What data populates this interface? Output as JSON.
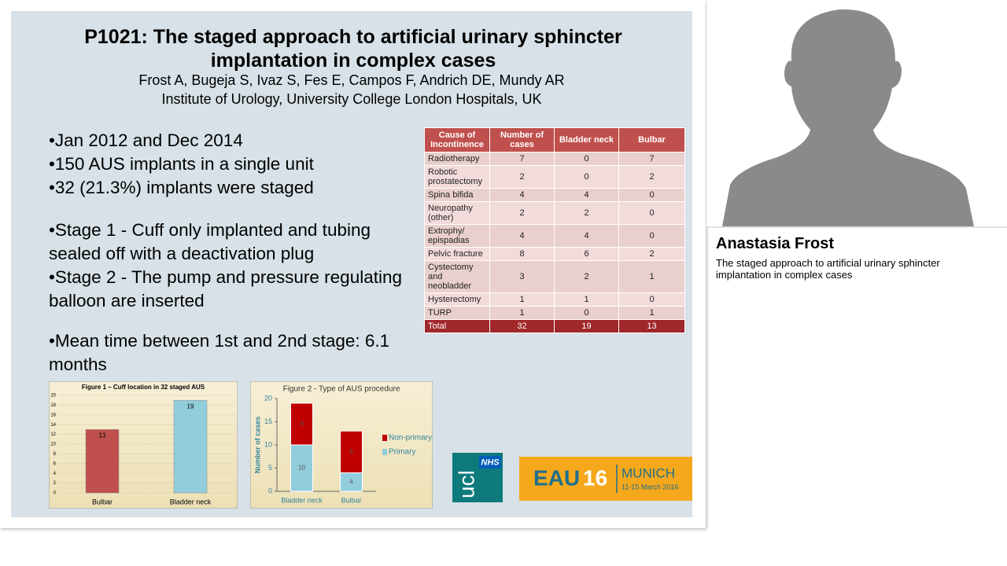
{
  "slide": {
    "title": "P1021: The staged approach to artificial urinary sphincter implantation in complex cases",
    "authors": "Frost A, Bugeja S, Ivaz S, Fes E, Campos F, Andrich DE, Mundy AR",
    "affiliation": "Institute of Urology, University College London Hospitals, UK",
    "bullet_groups": [
      [
        "Jan 2012 and Dec 2014",
        "150 AUS implants in a single unit",
        "32 (21.3%) implants were staged"
      ],
      [
        "Stage 1 - Cuff only implanted and tubing sealed off with a deactivation plug",
        "Stage 2 - The pump and pressure regulating balloon are inserted"
      ],
      [
        "Mean time between 1st and 2nd stage: 6.1 months"
      ]
    ],
    "table": {
      "header": [
        "Cause of Incontinence",
        "Number of cases",
        "Bladder neck",
        "Bulbar"
      ],
      "rows": [
        [
          "Radiotherapy",
          "7",
          "0",
          "7"
        ],
        [
          "Robotic prostatectomy",
          "2",
          "0",
          "2"
        ],
        [
          "Spina bifida",
          "4",
          "4",
          "0"
        ],
        [
          "Neuropathy (other)",
          "2",
          "2",
          "0"
        ],
        [
          "Extrophy/ epispadias",
          "4",
          "4",
          "0"
        ],
        [
          "Pelvic fracture",
          "8",
          "6",
          "2"
        ],
        [
          "Cystectomy and neobladder",
          "3",
          "2",
          "1"
        ],
        [
          "Hysterectomy",
          "1",
          "1",
          "0"
        ],
        [
          "TURP",
          "1",
          "0",
          "1"
        ],
        [
          "Total",
          "32",
          "19",
          "13"
        ]
      ]
    },
    "figure1": {
      "type": "bar",
      "title": "Figure 1 – Cuff location in 32 staged AUS",
      "categories": [
        "Bulbar",
        "Bladder neck"
      ],
      "values": [
        13,
        19
      ],
      "colors": [
        "#c0504d",
        "#92cddc"
      ],
      "ylim": [
        0,
        20
      ],
      "yticks": [
        0,
        2,
        4,
        6,
        8,
        10,
        12,
        14,
        16,
        18,
        20
      ]
    },
    "figure2": {
      "type": "stacked-bar",
      "title": "Figure 2 - Type of AUS procedure",
      "y_label": "Number of cases",
      "categories": [
        "Bladder neck",
        "Bulbar"
      ],
      "series": [
        {
          "name": "Primary",
          "color": "#92cddc",
          "values": [
            10,
            4
          ]
        },
        {
          "name": "Non-primary*",
          "color": "#c00000",
          "values": [
            9,
            9
          ]
        }
      ],
      "ylim": [
        0,
        20
      ],
      "yticks": [
        0,
        5,
        10,
        15,
        20
      ]
    },
    "logos": {
      "ucl": "ucl",
      "nhs": "NHS",
      "eau": "EAU",
      "edition": "16",
      "city": "MUNICH",
      "dates": "11-15 March 2016"
    }
  },
  "speaker": {
    "name": "Anastasia Frost",
    "talk": "The staged approach to artificial urinary sphincter implantation in complex cases"
  }
}
